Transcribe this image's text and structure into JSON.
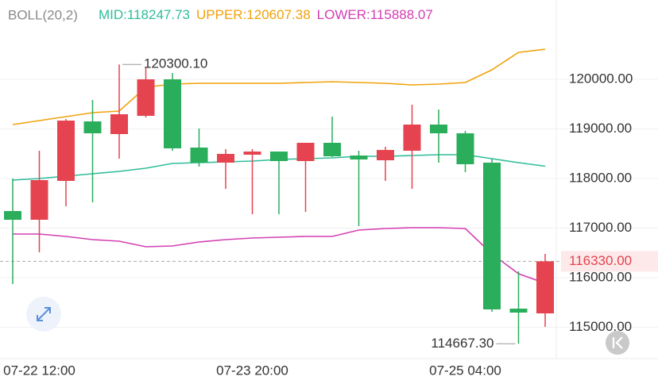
{
  "chart_data": {
    "type": "candlestick",
    "indicator": "BOLL(20,2)",
    "categories": [
      null,
      "07-22 12:00",
      null,
      null,
      null,
      null,
      null,
      null,
      null,
      "07-23 20:00",
      null,
      null,
      null,
      null,
      null,
      null,
      null,
      "07-25 04:00",
      null,
      null,
      null
    ],
    "open": [
      117344,
      117168,
      117952,
      119152,
      118896,
      119264,
      120000,
      118624,
      118320,
      118480,
      118544,
      118352,
      118720,
      118464,
      118368,
      118560,
      119088,
      118912,
      118320,
      115376,
      115280
    ],
    "high": [
      118000,
      118560,
      119200,
      119584,
      120300.1,
      120250,
      120128,
      119008,
      118592,
      118592,
      118544,
      118720,
      119248,
      118560,
      118640,
      119488,
      119392,
      118960,
      118400,
      116128,
      116480
    ],
    "low": [
      115872,
      116512,
      117440,
      117520,
      118400,
      119232,
      118560,
      118240,
      117792,
      117280,
      117280,
      117328,
      118432,
      117040,
      117952,
      117792,
      118320,
      118128,
      115312,
      114667.3,
      115008
    ],
    "close": [
      117168,
      117968,
      119168,
      118912,
      119296,
      120000,
      118608,
      118320,
      118496,
      118544,
      118352,
      118720,
      118448,
      118384,
      118576,
      119088,
      118912,
      118288,
      115360,
      115296,
      116330
    ],
    "up_color": "#e5434f",
    "down_color": "#2aae5c",
    "series": [
      {
        "name": "MID:",
        "color": "#2ebd9a",
        "values": [
          117968,
          118000,
          118048,
          118096,
          118144,
          118208,
          118304,
          118320,
          118336,
          118352,
          118384,
          118400,
          118416,
          118448,
          118448,
          118464,
          118480,
          118480,
          118400,
          118320,
          118247.73
        ]
      },
      {
        "name": "UPPER:",
        "color": "#f0a20c",
        "values": [
          119088,
          119168,
          119248,
          119328,
          119360,
          119840,
          119904,
          119920,
          119920,
          119920,
          119920,
          119936,
          119952,
          119936,
          119920,
          119888,
          119904,
          119936,
          120192,
          120544,
          120607.38
        ]
      },
      {
        "name": "LOWER:",
        "color": "#d43fb2",
        "values": [
          116880,
          116880,
          116832,
          116768,
          116736,
          116624,
          116640,
          116720,
          116768,
          116800,
          116816,
          116832,
          116832,
          116960,
          116992,
          117008,
          117008,
          116992,
          116480,
          116080,
          115888.07
        ]
      }
    ],
    "ylim": [
      114368,
      121600
    ],
    "yticks": [
      {
        "value": 120000,
        "label": "120000.00"
      },
      {
        "value": 119000,
        "label": "119000.00"
      },
      {
        "value": 118000,
        "label": "118000.00"
      },
      {
        "value": 117000,
        "label": "117000.00"
      },
      {
        "value": 116000,
        "label": "116000.00"
      },
      {
        "value": 115000,
        "label": "115000.00"
      }
    ],
    "grid": true,
    "high_label": "120300.10",
    "low_label": "114667.30",
    "last_price_label": "116330.00"
  }
}
